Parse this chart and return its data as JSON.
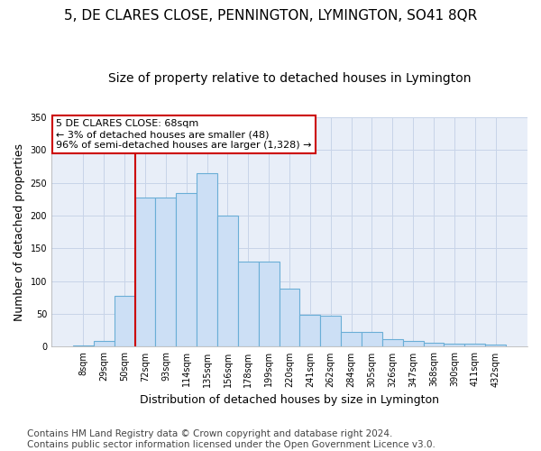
{
  "title": "5, DE CLARES CLOSE, PENNINGTON, LYMINGTON, SO41 8QR",
  "subtitle": "Size of property relative to detached houses in Lymington",
  "xlabel": "Distribution of detached houses by size in Lymington",
  "ylabel": "Number of detached properties",
  "categories": [
    "8sqm",
    "29sqm",
    "50sqm",
    "72sqm",
    "93sqm",
    "114sqm",
    "135sqm",
    "156sqm",
    "178sqm",
    "199sqm",
    "220sqm",
    "241sqm",
    "262sqm",
    "284sqm",
    "305sqm",
    "326sqm",
    "347sqm",
    "368sqm",
    "390sqm",
    "411sqm",
    "432sqm"
  ],
  "values": [
    2,
    9,
    78,
    227,
    228,
    235,
    265,
    200,
    130,
    130,
    88,
    49,
    47,
    22,
    22,
    11,
    9,
    6,
    5,
    5,
    3
  ],
  "bar_color": "#ccdff5",
  "bar_edge_color": "#6aaed6",
  "grid_color": "#c8d4e8",
  "bg_color": "#e8eef8",
  "vline_color": "#cc0000",
  "annotation_text": "5 DE CLARES CLOSE: 68sqm\n← 3% of detached houses are smaller (48)\n96% of semi-detached houses are larger (1,328) →",
  "annotation_box_color": "#ffffff",
  "annotation_box_edge": "#cc0000",
  "footer": "Contains HM Land Registry data © Crown copyright and database right 2024.\nContains public sector information licensed under the Open Government Licence v3.0.",
  "ylim": [
    0,
    350
  ],
  "title_fontsize": 11,
  "subtitle_fontsize": 10,
  "xlabel_fontsize": 9,
  "ylabel_fontsize": 9,
  "footer_fontsize": 7.5
}
